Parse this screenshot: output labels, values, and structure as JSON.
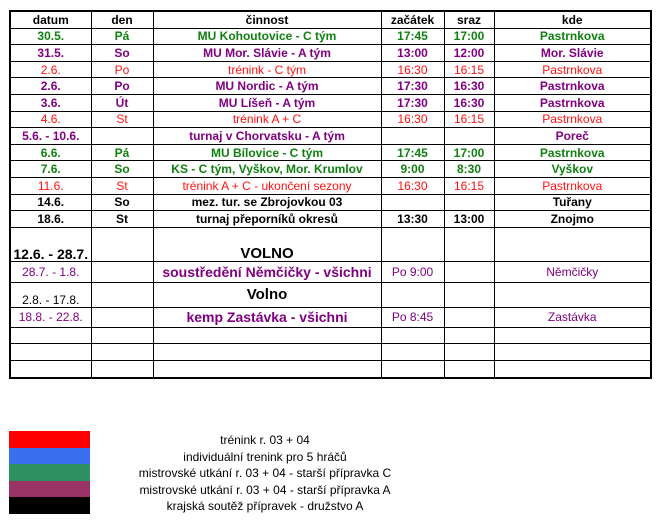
{
  "header": {
    "datum": "datum",
    "den": "den",
    "cinnost": "činnost",
    "zacatek": "začátek",
    "sraz": "sraz",
    "kde": "kde"
  },
  "rows": [
    {
      "datum": "30.5.",
      "den": "Pá",
      "cinnost": "MU Kohoutovice - C tým",
      "zacatek": "17:45",
      "sraz": "17:00",
      "kde": "Pastrnkova",
      "color": "green"
    },
    {
      "datum": "31.5.",
      "den": "So",
      "cinnost": "MU Mor. Slávie - A tým",
      "zacatek": "13:00",
      "sraz": "12:00",
      "kde": "Mor. Slávie",
      "color": "purple"
    },
    {
      "datum": "2.6.",
      "den": "Po",
      "cinnost": "trénink - C tým",
      "zacatek": "16:30",
      "sraz": "16:15",
      "kde": "Pastrnkova",
      "color": "red"
    },
    {
      "datum": "2.6.",
      "den": "Po",
      "cinnost": "MU Nordic - A tým",
      "zacatek": "17:30",
      "sraz": "16:30",
      "kde": "Pastrnkova",
      "color": "purple"
    },
    {
      "datum": "3.6.",
      "den": "Út",
      "cinnost": "MU Líšeň - A tým",
      "zacatek": "17:30",
      "sraz": "16:30",
      "kde": "Pastrnkova",
      "color": "purple"
    },
    {
      "datum": "4.6.",
      "den": "St",
      "cinnost": "trénink A + C",
      "zacatek": "16:30",
      "sraz": "16:15",
      "kde": "Pastrnkova",
      "color": "red"
    },
    {
      "datum": "5.6. - 10.6.",
      "den": "",
      "cinnost": "turnaj v Chorvatsku - A tým",
      "zacatek": "",
      "sraz": "",
      "kde": "Poreč",
      "color": "purple"
    },
    {
      "datum": "6.6.",
      "den": "Pá",
      "cinnost": "MU Bílovice - C tým",
      "zacatek": "17:45",
      "sraz": "17:00",
      "kde": "Pastrnkova",
      "color": "green"
    },
    {
      "datum": "7.6.",
      "den": "So",
      "cinnost": "KS - C tým, Vyškov, Mor. Krumlov",
      "zacatek": "9:00",
      "sraz": "8:30",
      "kde": "Vyškov",
      "color": "green"
    },
    {
      "datum": "11.6.",
      "den": "St",
      "cinnost": "trénink A + C - ukončení sezony",
      "zacatek": "16:30",
      "sraz": "16:15",
      "kde": "Pastrnkova",
      "color": "red"
    },
    {
      "datum": "14.6.",
      "den": "So",
      "cinnost": "mez. tur. se Zbrojovkou 03",
      "zacatek": "",
      "sraz": "",
      "kde": "Tuřany",
      "color": "black"
    },
    {
      "datum": "18.6.",
      "den": "St",
      "cinnost": "turnaj přeporníků okresů",
      "zacatek": "13:30",
      "sraz": "13:00",
      "kde": "Znojmo",
      "color": "black"
    }
  ],
  "extra": [
    {
      "datum": "12.6. - 28.7.",
      "cinnost": "VOLNO"
    },
    {
      "datum": "28.7. - 1.8.",
      "cinnost": "soustředění Němčičky - všichni",
      "zacatek": "Po 9:00",
      "kde": "Němčičky"
    },
    {
      "datum": "2.8. - 17.8.",
      "cinnost": "Volno"
    },
    {
      "datum": "18.8. - 22.8.",
      "cinnost": "kemp Zastávka - všichni",
      "zacatek": "Po 8:45",
      "kde": "Zastávka"
    }
  ],
  "legend": [
    {
      "label": "trénink r. 03 + 04",
      "color": "#ff0000"
    },
    {
      "label": "individuální trenink pro 5 hráčů",
      "color": "#3a6ef0"
    },
    {
      "label": "mistrovské utkání r. 03 + 04 - starší přípravka C",
      "color": "#2e9060"
    },
    {
      "label": "mistrovské utkání r. 03 + 04 - starší přípravka A",
      "color": "#993366"
    },
    {
      "label": "krajská soutěž přípravek - družstvo A",
      "color": "#000000"
    }
  ]
}
